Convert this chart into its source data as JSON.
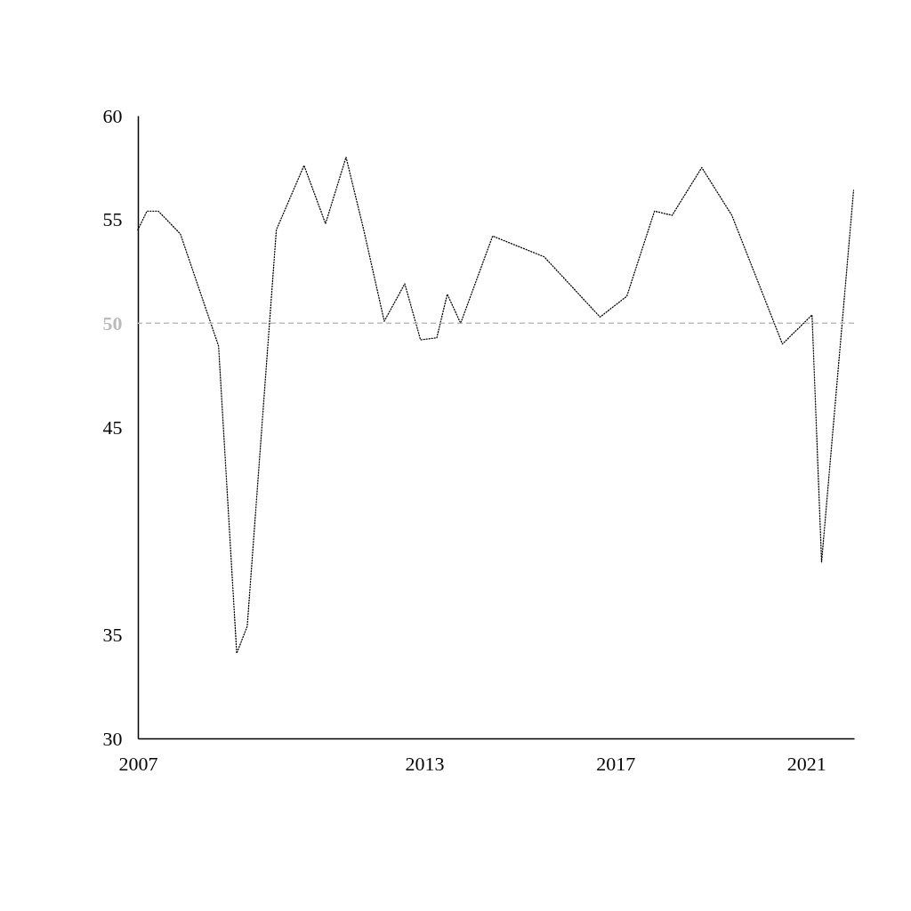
{
  "chart_data": {
    "type": "line",
    "line_style": "dotted",
    "grid": false,
    "xlim": [
      2007,
      2022
    ],
    "xticks": [
      2007,
      2013,
      2017,
      2021
    ],
    "ylim": [
      30,
      60
    ],
    "yticks": [
      30,
      35,
      45,
      50,
      55,
      60
    ],
    "ref_lines": [
      {
        "axis": "y",
        "value": 50,
        "color": "#bbbbbb",
        "line_style": "dashed"
      }
    ],
    "series": [
      {
        "color": "#000000",
        "x": [
          2007.0,
          2007.19,
          2007.43,
          2007.89,
          2008.69,
          2009.07,
          2009.29,
          2009.9,
          2010.48,
          2010.93,
          2011.36,
          2011.73,
          2012.16,
          2012.59,
          2012.92,
          2013.26,
          2013.48,
          2013.76,
          2014.43,
          2015.51,
          2016.68,
          2017.24,
          2017.82,
          2018.19,
          2018.81,
          2019.44,
          2020.5,
          2021.12,
          2021.32,
          2021.99
        ],
        "values": [
          54.5,
          55.4,
          55.4,
          54.3,
          48.9,
          34.1,
          35.4,
          54.5,
          57.6,
          54.8,
          58.0,
          54.5,
          50.1,
          51.9,
          49.2,
          49.3,
          51.4,
          50.0,
          54.2,
          53.2,
          50.3,
          51.3,
          55.4,
          55.2,
          57.5,
          55.2,
          49.0,
          50.4,
          38.5,
          56.4
        ]
      }
    ]
  }
}
